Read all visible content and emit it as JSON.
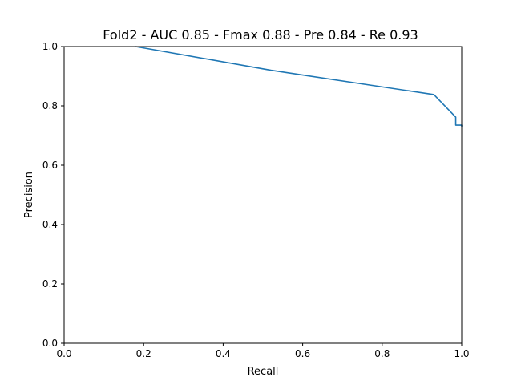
{
  "chart_data": {
    "type": "line",
    "title": "Fold2 - AUC 0.85 - Fmax 0.88 - Pre 0.84 - Re 0.93",
    "xlabel": "Recall",
    "ylabel": "Precision",
    "xlim": [
      0.0,
      1.0
    ],
    "ylim": [
      0.0,
      1.0
    ],
    "xticks": [
      "0.0",
      "0.2",
      "0.4",
      "0.6",
      "0.8",
      "1.0"
    ],
    "yticks": [
      "0.0",
      "0.2",
      "0.4",
      "0.6",
      "0.8",
      "1.0"
    ],
    "grid": false,
    "series": [
      {
        "color": "#1f77b4",
        "x": [
          0.18,
          0.52,
          0.93,
          0.985,
          0.985,
          1.0,
          1.0
        ],
        "y": [
          1.0,
          0.92,
          0.838,
          0.762,
          0.735,
          0.735,
          0.73
        ]
      }
    ]
  }
}
